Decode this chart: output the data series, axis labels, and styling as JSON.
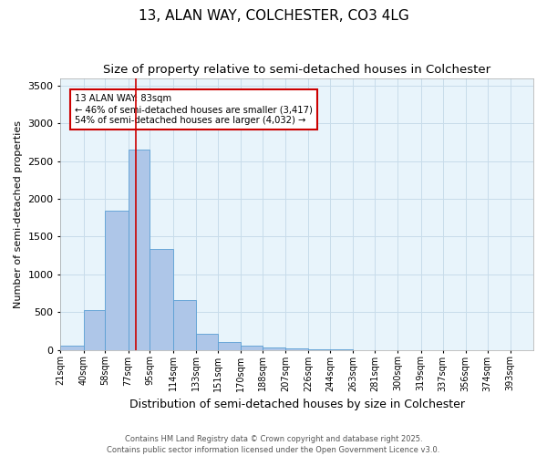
{
  "title1": "13, ALAN WAY, COLCHESTER, CO3 4LG",
  "title2": "Size of property relative to semi-detached houses in Colchester",
  "xlabel": "Distribution of semi-detached houses by size in Colchester",
  "ylabel": "Number of semi-detached properties",
  "bin_labels": [
    "21sqm",
    "40sqm",
    "58sqm",
    "77sqm",
    "95sqm",
    "114sqm",
    "133sqm",
    "151sqm",
    "170sqm",
    "188sqm",
    "207sqm",
    "226sqm",
    "244sqm",
    "263sqm",
    "281sqm",
    "300sqm",
    "319sqm",
    "337sqm",
    "356sqm",
    "374sqm",
    "393sqm"
  ],
  "bin_edges": [
    21,
    40,
    58,
    77,
    95,
    114,
    133,
    151,
    170,
    188,
    207,
    226,
    244,
    263,
    281,
    300,
    319,
    337,
    356,
    374,
    393
  ],
  "bar_heights": [
    60,
    530,
    1850,
    2650,
    1340,
    660,
    210,
    100,
    55,
    30,
    15,
    10,
    5,
    2,
    1,
    0,
    0,
    0,
    0,
    0,
    0
  ],
  "bar_color": "#aec6e8",
  "bar_edge_color": "#5a9fd4",
  "property_sqm": 83,
  "red_line_color": "#cc0000",
  "annotation_line1": "13 ALAN WAY: 83sqm",
  "annotation_line2": "← 46% of semi-detached houses are smaller (3,417)",
  "annotation_line3": "54% of semi-detached houses are larger (4,032) →",
  "annotation_box_color": "#cc0000",
  "ylim": [
    0,
    3600
  ],
  "yticks": [
    0,
    500,
    1000,
    1500,
    2000,
    2500,
    3000,
    3500
  ],
  "grid_color": "#c8dcea",
  "bg_color": "#e8f4fb",
  "footer_text": "Contains HM Land Registry data © Crown copyright and database right 2025.\nContains public sector information licensed under the Open Government Licence v3.0.",
  "title1_fontsize": 11,
  "title2_fontsize": 9.5,
  "ylabel_fontsize": 8,
  "xlabel_fontsize": 9
}
